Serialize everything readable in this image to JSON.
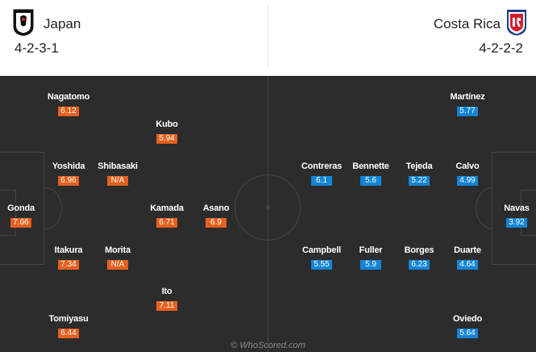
{
  "home": {
    "name": "Japan",
    "formation": "4-2-3-1",
    "rating_color": "#e5601f",
    "crest_icon": "japan-crest-icon",
    "players": [
      {
        "name": "Nagatomo",
        "rating": "6.12"
      },
      {
        "name": "Kubo",
        "rating": "5.94"
      },
      {
        "name": "Yoshida",
        "rating": "6.96"
      },
      {
        "name": "Shibasaki",
        "rating": "N/A"
      },
      {
        "name": "Gonda",
        "rating": "7.66"
      },
      {
        "name": "Kamada",
        "rating": "6.71"
      },
      {
        "name": "Asano",
        "rating": "6.9"
      },
      {
        "name": "Itakura",
        "rating": "7.34"
      },
      {
        "name": "Morita",
        "rating": "N/A"
      },
      {
        "name": "Ito",
        "rating": "7.11"
      },
      {
        "name": "Tomiyasu",
        "rating": "6.44"
      }
    ]
  },
  "away": {
    "name": "Costa Rica",
    "formation": "4-2-2-2",
    "rating_color": "#1385d7",
    "crest_icon": "costa-rica-crest-icon",
    "players": [
      {
        "name": "Martínez",
        "rating": "5.77"
      },
      {
        "name": "Contreras",
        "rating": "6.1"
      },
      {
        "name": "Bennette",
        "rating": "5.6"
      },
      {
        "name": "Tejeda",
        "rating": "5.22"
      },
      {
        "name": "Calvo",
        "rating": "4.99"
      },
      {
        "name": "Navas",
        "rating": "3.92"
      },
      {
        "name": "Campbell",
        "rating": "5.55"
      },
      {
        "name": "Fuller",
        "rating": "5.9"
      },
      {
        "name": "Borges",
        "rating": "6.23"
      },
      {
        "name": "Duarte",
        "rating": "4.64"
      },
      {
        "name": "Oviedo",
        "rating": "5.64"
      }
    ]
  },
  "watermark": "© WhoScored.com"
}
